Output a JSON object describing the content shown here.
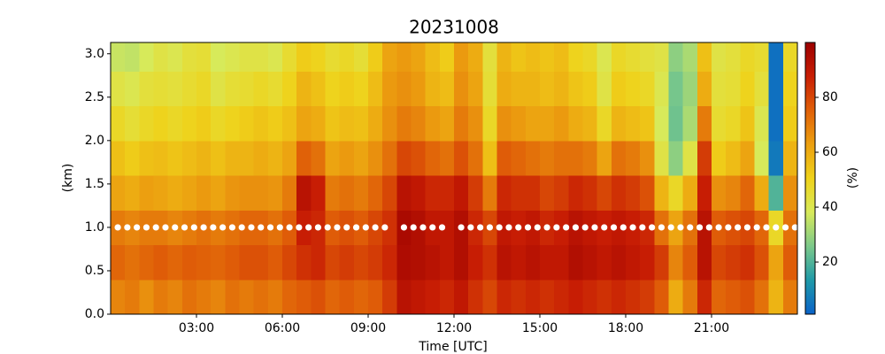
{
  "chart_data": {
    "type": "heatmap",
    "title": "20231008",
    "x_label": "Time [UTC]",
    "y_label": "(km)",
    "colorbar_label": "(%)",
    "xlim": [
      0,
      1440
    ],
    "xticks": [
      {
        "value": 180,
        "label": "03:00"
      },
      {
        "value": 360,
        "label": "06:00"
      },
      {
        "value": 540,
        "label": "09:00"
      },
      {
        "value": 720,
        "label": "12:00"
      },
      {
        "value": 900,
        "label": "15:00"
      },
      {
        "value": 1080,
        "label": "18:00"
      },
      {
        "value": 1260,
        "label": "21:00"
      }
    ],
    "ylim": [
      0,
      3.13
    ],
    "yticks": [
      {
        "value": 0,
        "label": "0.0"
      },
      0.5,
      {
        "value": 1,
        "label": "1.0"
      },
      1.5,
      {
        "value": 2,
        "label": "2.0"
      },
      2.5,
      {
        "value": 3,
        "label": "3.0"
      }
    ],
    "clim": [
      1,
      100
    ],
    "cticks": [
      20,
      40,
      60,
      80
    ],
    "colormap": [
      "#0a62c8",
      "#1f9aa8",
      "#7cc98a",
      "#d8ea5a",
      "#efd21a",
      "#eca010",
      "#e06008",
      "#c81e04",
      "#9c0000"
    ],
    "x_edges": [
      0,
      30,
      60,
      90,
      120,
      150,
      180,
      210,
      240,
      270,
      300,
      330,
      360,
      390,
      420,
      450,
      480,
      510,
      540,
      570,
      600,
      630,
      660,
      690,
      720,
      750,
      780,
      810,
      840,
      870,
      900,
      930,
      960,
      990,
      1020,
      1050,
      1080,
      1110,
      1140,
      1170,
      1200,
      1230,
      1260,
      1290,
      1320,
      1350,
      1380,
      1410,
      1440
    ],
    "y_edges": [
      0,
      0.4,
      0.8,
      1.2,
      1.6,
      2.0,
      2.4,
      2.8,
      3.2
    ],
    "z": [
      [
        68,
        74,
        70,
        62,
        55,
        48,
        42,
        36
      ],
      [
        70,
        72,
        68,
        60,
        52,
        45,
        40,
        35
      ],
      [
        66,
        74,
        70,
        63,
        55,
        48,
        44,
        38
      ],
      [
        70,
        76,
        70,
        62,
        56,
        50,
        45,
        42
      ],
      [
        68,
        74,
        68,
        60,
        54,
        48,
        44,
        40
      ],
      [
        72,
        76,
        70,
        62,
        56,
        50,
        46,
        44
      ],
      [
        70,
        75,
        72,
        64,
        58,
        52,
        48,
        45
      ],
      [
        68,
        74,
        70,
        62,
        55,
        48,
        42,
        38
      ],
      [
        72,
        76,
        72,
        65,
        58,
        50,
        45,
        40
      ],
      [
        70,
        78,
        74,
        66,
        58,
        52,
        46,
        42
      ],
      [
        72,
        78,
        74,
        66,
        60,
        54,
        48,
        42
      ],
      [
        70,
        76,
        72,
        65,
        58,
        52,
        46,
        40
      ],
      [
        74,
        80,
        76,
        70,
        62,
        55,
        50,
        46
      ],
      [
        76,
        84,
        88,
        92,
        75,
        62,
        58,
        52
      ],
      [
        78,
        86,
        86,
        88,
        72,
        60,
        55,
        50
      ],
      [
        74,
        80,
        76,
        70,
        62,
        54,
        50,
        46
      ],
      [
        76,
        82,
        78,
        72,
        64,
        56,
        52,
        48
      ],
      [
        74,
        80,
        76,
        70,
        62,
        55,
        50,
        45
      ],
      [
        76,
        82,
        80,
        74,
        66,
        60,
        56,
        52
      ],
      [
        82,
        86,
        84,
        80,
        72,
        66,
        64,
        62
      ],
      [
        92,
        95,
        96,
        92,
        80,
        70,
        66,
        64
      ],
      [
        90,
        94,
        94,
        90,
        78,
        68,
        64,
        62
      ],
      [
        88,
        92,
        90,
        86,
        74,
        64,
        58,
        56
      ],
      [
        86,
        90,
        90,
        86,
        72,
        62,
        56,
        52
      ],
      [
        90,
        94,
        94,
        90,
        78,
        70,
        66,
        64
      ],
      [
        84,
        88,
        86,
        82,
        72,
        66,
        62,
        60
      ],
      [
        80,
        84,
        80,
        70,
        55,
        48,
        45,
        44
      ],
      [
        86,
        92,
        90,
        86,
        76,
        66,
        60,
        58
      ],
      [
        84,
        90,
        88,
        84,
        74,
        64,
        58,
        54
      ],
      [
        86,
        92,
        90,
        84,
        72,
        62,
        58,
        56
      ],
      [
        84,
        90,
        86,
        80,
        70,
        62,
        56,
        54
      ],
      [
        86,
        90,
        88,
        82,
        72,
        64,
        58,
        56
      ],
      [
        88,
        94,
        92,
        86,
        72,
        60,
        54,
        50
      ],
      [
        86,
        92,
        90,
        84,
        70,
        58,
        52,
        48
      ],
      [
        84,
        90,
        88,
        80,
        62,
        48,
        42,
        40
      ],
      [
        86,
        92,
        90,
        84,
        72,
        58,
        52,
        48
      ],
      [
        84,
        90,
        88,
        82,
        70,
        56,
        50,
        46
      ],
      [
        82,
        88,
        86,
        78,
        66,
        54,
        48,
        44
      ],
      [
        76,
        82,
        72,
        58,
        42,
        38,
        40,
        42
      ],
      [
        60,
        68,
        62,
        48,
        28,
        24,
        25,
        28
      ],
      [
        70,
        76,
        72,
        60,
        42,
        32,
        30,
        32
      ],
      [
        86,
        92,
        92,
        88,
        82,
        70,
        60,
        55
      ],
      [
        74,
        80,
        76,
        66,
        52,
        46,
        44,
        42
      ],
      [
        76,
        82,
        78,
        68,
        56,
        48,
        45,
        44
      ],
      [
        78,
        84,
        80,
        74,
        62,
        54,
        50,
        48
      ],
      [
        72,
        78,
        74,
        60,
        38,
        40,
        44,
        46
      ],
      [
        58,
        62,
        48,
        20,
        6,
        4,
        4,
        4
      ],
      [
        70,
        76,
        72,
        66,
        58,
        52,
        50,
        48
      ]
    ],
    "markers": {
      "color": "#ffffff",
      "x": [
        15,
        35,
        55,
        75,
        95,
        115,
        135,
        155,
        175,
        195,
        215,
        235,
        255,
        275,
        295,
        315,
        335,
        355,
        375,
        395,
        415,
        435,
        455,
        475,
        495,
        515,
        535,
        555,
        575,
        615,
        635,
        655,
        675,
        695,
        735,
        755,
        775,
        795,
        815,
        835,
        855,
        875,
        895,
        915,
        935,
        955,
        975,
        995,
        1015,
        1035,
        1055,
        1075,
        1095,
        1115,
        1135,
        1155,
        1175,
        1195,
        1215,
        1235,
        1255,
        1275,
        1295,
        1315,
        1335,
        1355,
        1375,
        1395,
        1415,
        1435
      ],
      "values": [
        1,
        1,
        1,
        1,
        1,
        1,
        1,
        1,
        1,
        1,
        1,
        1,
        1,
        1,
        1,
        1,
        1,
        1,
        1,
        1,
        1,
        1,
        1,
        1,
        1,
        1,
        1,
        1,
        1,
        1,
        1,
        1,
        1,
        1,
        1,
        1,
        1,
        1,
        1,
        1,
        1,
        1,
        1,
        1,
        1,
        1,
        1,
        1,
        1,
        1,
        1,
        1,
        1,
        1,
        1,
        1,
        1,
        1,
        1,
        1,
        1,
        1,
        1,
        1,
        1,
        1,
        1,
        1,
        1,
        1
      ]
    }
  }
}
